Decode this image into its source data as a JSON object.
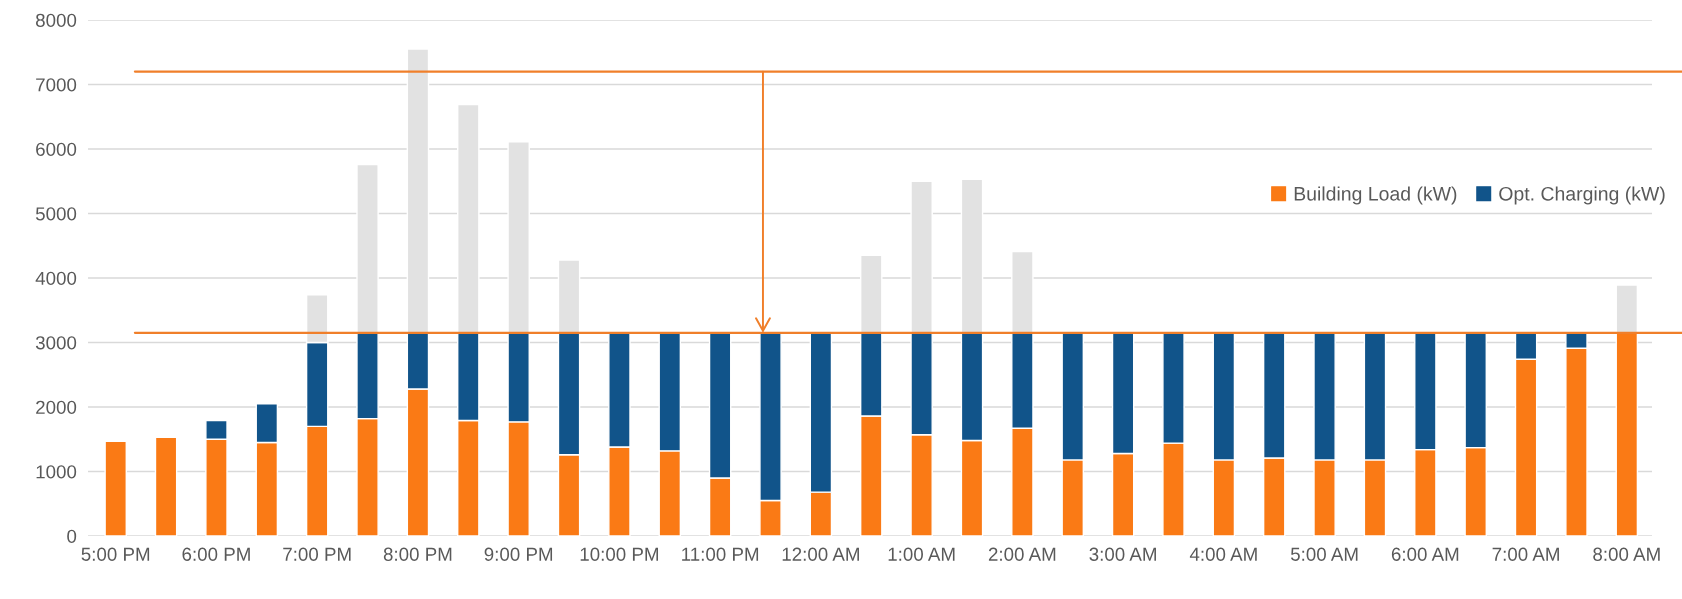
{
  "chart_data": {
    "type": "bar",
    "stacked": true,
    "categories": [
      "5:00 PM",
      null,
      "6:00 PM",
      null,
      "7:00 PM",
      null,
      "8:00 PM",
      null,
      "9:00 PM",
      null,
      "10:00 PM",
      null,
      "11:00 PM",
      null,
      "12:00 AM",
      null,
      "1:00 AM",
      null,
      "2:00 AM",
      null,
      "3:00 AM",
      null,
      "4:00 AM",
      null,
      "5:00 AM",
      null,
      "6:00 AM",
      null,
      "7:00 AM",
      null,
      "8:00 AM"
    ],
    "series": [
      {
        "name": "Building Load (kW)",
        "color": "#fa7a15",
        "values": [
          1470,
          1530,
          1500,
          1450,
          1700,
          1820,
          2280,
          1790,
          1770,
          1260,
          1380,
          1320,
          900,
          550,
          680,
          1860,
          1570,
          1480,
          1670,
          1180,
          1280,
          1440,
          1180,
          1210,
          1180,
          1180,
          1340,
          1370,
          2740,
          2910,
          3150
        ]
      },
      {
        "name": "Opt. Charging (kW)",
        "color": "#11548a",
        "values": [
          null,
          null,
          290,
          600,
          1300,
          1330,
          870,
          1360,
          1380,
          1890,
          1770,
          1830,
          2250,
          2600,
          2470,
          1290,
          1580,
          1670,
          1480,
          1970,
          1870,
          1710,
          1970,
          1940,
          1970,
          1970,
          1810,
          1780,
          410,
          240,
          null
        ]
      },
      {
        "color": "#e2e2e2",
        "values": [
          null,
          null,
          null,
          null,
          740,
          2610,
          4400,
          3540,
          2960,
          1130,
          null,
          null,
          null,
          null,
          null,
          1200,
          2350,
          2380,
          1260,
          null,
          null,
          null,
          null,
          null,
          null,
          null,
          null,
          null,
          null,
          null,
          740
        ]
      }
    ],
    "ylim": [
      0,
      8000
    ],
    "yticks": [
      0,
      1000,
      2000,
      3000,
      4000,
      5000,
      6000,
      7000,
      8000
    ],
    "grid": "y",
    "legend": "right",
    "ref_lines": [
      {
        "axis": "y",
        "value": 7200,
        "color": "#f07f2a"
      },
      {
        "axis": "y",
        "value": 3150,
        "color": "#f07f2a"
      }
    ]
  }
}
